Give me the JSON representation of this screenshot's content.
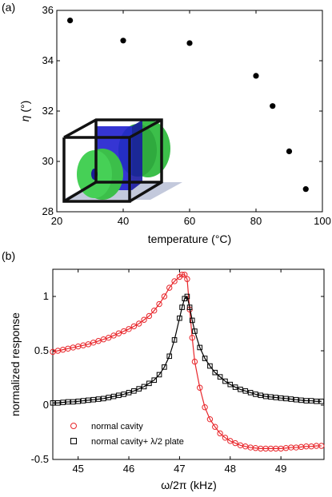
{
  "chart_data": [
    {
      "type": "scatter",
      "panel_label": "(a)",
      "xlabel": "temperature (°C)",
      "ylabel": "η (°)",
      "ylabel_symbol": "η",
      "ylabel_unit": " (°)",
      "xlim": [
        20,
        100
      ],
      "ylim": [
        28,
        36
      ],
      "x_ticks": [
        20,
        40,
        60,
        80,
        100
      ],
      "y_ticks": [
        28,
        30,
        32,
        34,
        36
      ],
      "grid": false,
      "points": {
        "x": [
          24,
          40,
          60,
          80,
          85,
          90,
          95
        ],
        "y": [
          35.6,
          34.8,
          34.7,
          33.4,
          32.2,
          30.4,
          28.9
        ]
      },
      "inset": "3D render of optical cavity: black frame box with two green toroidal mirrors and a blue plate",
      "colors": {
        "points": "#000000",
        "inset_frame": "#111111",
        "inset_green": "#3cbf4a",
        "inset_blue": "#2020d0"
      }
    },
    {
      "type": "line",
      "panel_label": "(b)",
      "xlabel": "ω/2π (kHz)",
      "ylabel": "normalized response",
      "xlim": [
        44.5,
        49.85
      ],
      "ylim": [
        -0.5,
        1.25
      ],
      "x_ticks": [
        45,
        46,
        47,
        48,
        49
      ],
      "y_ticks": [
        -0.5,
        0,
        0.5,
        1
      ],
      "y_tick_labels": [
        "-0.5",
        "0",
        "0.5",
        "1"
      ],
      "grid": false,
      "legend_position": "bottom-left",
      "series": [
        {
          "name": "normal cavity",
          "marker": "circle",
          "color": "#e8262b",
          "x": [
            44.5,
            44.6,
            44.7,
            44.8,
            44.9,
            45.0,
            45.1,
            45.2,
            45.3,
            45.4,
            45.5,
            45.6,
            45.7,
            45.8,
            45.9,
            46.0,
            46.1,
            46.2,
            46.3,
            46.4,
            46.5,
            46.6,
            46.7,
            46.8,
            46.9,
            47.0,
            47.05,
            47.1,
            47.15,
            47.2,
            47.25,
            47.3,
            47.4,
            47.5,
            47.6,
            47.7,
            47.8,
            47.9,
            48.0,
            48.1,
            48.2,
            48.3,
            48.4,
            48.5,
            48.6,
            48.7,
            48.8,
            48.9,
            49.0,
            49.1,
            49.2,
            49.3,
            49.4,
            49.5,
            49.6,
            49.7,
            49.8
          ],
          "y": [
            0.49,
            0.5,
            0.51,
            0.52,
            0.53,
            0.54,
            0.55,
            0.56,
            0.575,
            0.59,
            0.605,
            0.62,
            0.64,
            0.66,
            0.68,
            0.7,
            0.725,
            0.75,
            0.785,
            0.82,
            0.87,
            0.93,
            1.0,
            1.08,
            1.14,
            1.18,
            1.2,
            1.2,
            1.16,
            0.88,
            0.62,
            0.4,
            0.16,
            -0.02,
            -0.13,
            -0.2,
            -0.26,
            -0.3,
            -0.33,
            -0.35,
            -0.37,
            -0.38,
            -0.39,
            -0.395,
            -0.4,
            -0.4,
            -0.4,
            -0.4,
            -0.4,
            -0.395,
            -0.39,
            -0.39,
            -0.385,
            -0.38,
            -0.38,
            -0.375,
            -0.375
          ]
        },
        {
          "name": "normal cavity+ λ/2 plate",
          "marker": "square",
          "color": "#000000",
          "x": [
            44.5,
            44.6,
            44.7,
            44.8,
            44.9,
            45.0,
            45.1,
            45.2,
            45.3,
            45.4,
            45.5,
            45.6,
            45.7,
            45.8,
            45.9,
            46.0,
            46.1,
            46.2,
            46.3,
            46.4,
            46.5,
            46.6,
            46.7,
            46.8,
            46.9,
            47.0,
            47.05,
            47.1,
            47.15,
            47.2,
            47.25,
            47.3,
            47.4,
            47.5,
            47.6,
            47.7,
            47.8,
            47.9,
            48.0,
            48.1,
            48.2,
            48.3,
            48.4,
            48.5,
            48.6,
            48.7,
            48.8,
            48.9,
            49.0,
            49.1,
            49.2,
            49.3,
            49.4,
            49.5,
            49.6,
            49.7,
            49.8
          ],
          "y": [
            0.02,
            0.02,
            0.025,
            0.03,
            0.03,
            0.035,
            0.04,
            0.045,
            0.05,
            0.055,
            0.06,
            0.07,
            0.08,
            0.09,
            0.1,
            0.115,
            0.13,
            0.15,
            0.17,
            0.2,
            0.23,
            0.28,
            0.35,
            0.45,
            0.6,
            0.8,
            0.9,
            0.98,
            1.0,
            0.9,
            0.78,
            0.68,
            0.53,
            0.43,
            0.36,
            0.3,
            0.26,
            0.22,
            0.19,
            0.165,
            0.145,
            0.13,
            0.115,
            0.1,
            0.09,
            0.08,
            0.075,
            0.07,
            0.065,
            0.06,
            0.055,
            0.05,
            0.045,
            0.04,
            0.04,
            0.035,
            0.035
          ]
        }
      ]
    }
  ]
}
